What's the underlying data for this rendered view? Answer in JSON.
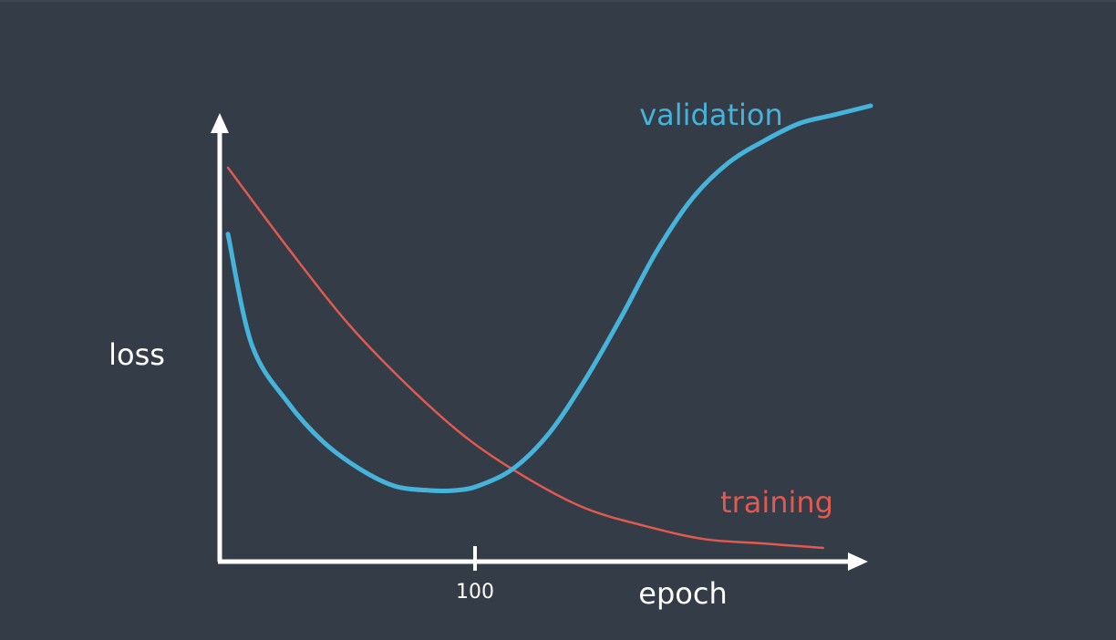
{
  "chart_data": {
    "type": "line",
    "title": "",
    "xlabel": "epoch",
    "ylabel": "loss",
    "x_ticks": [
      100
    ],
    "x_tick_labels": [
      "100"
    ],
    "xlim": [
      0,
      270
    ],
    "ylim": [
      0,
      1
    ],
    "grid": false,
    "legend": "inline labels at series ends",
    "series": [
      {
        "name": "validation",
        "color": "#46b4da",
        "x": [
          0,
          10,
          25,
          40,
          55,
          70,
          85,
          95,
          105,
          120,
          135,
          150,
          165,
          180,
          195,
          210,
          225,
          240,
          255,
          270
        ],
        "y": [
          0.71,
          0.46,
          0.33,
          0.24,
          0.18,
          0.14,
          0.13,
          0.13,
          0.14,
          0.18,
          0.26,
          0.38,
          0.52,
          0.67,
          0.79,
          0.87,
          0.92,
          0.96,
          0.98,
          1.0
        ]
      },
      {
        "name": "training",
        "color": "#e05a4f",
        "x": [
          0,
          25,
          50,
          75,
          100,
          125,
          150,
          175,
          200,
          225,
          250
        ],
        "y": [
          0.86,
          0.68,
          0.51,
          0.37,
          0.25,
          0.16,
          0.09,
          0.05,
          0.02,
          0.01,
          0.0
        ]
      }
    ]
  }
}
